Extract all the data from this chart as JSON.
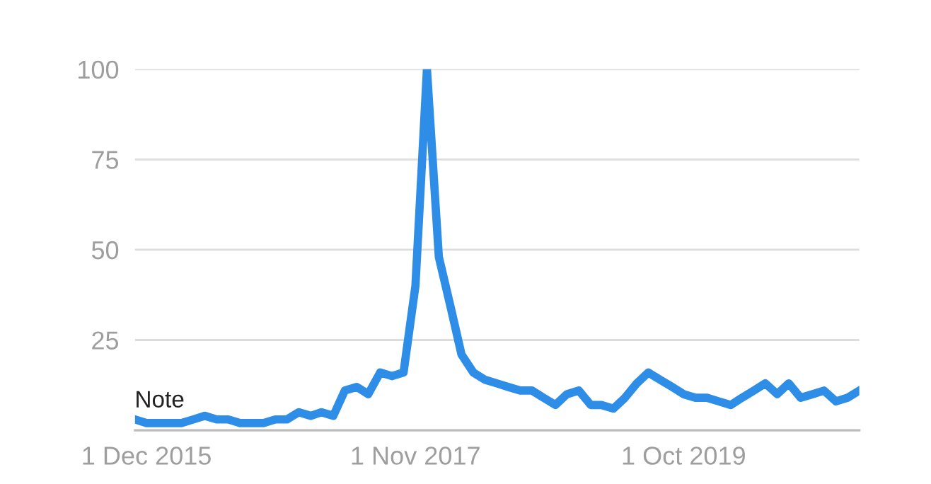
{
  "chart_data": {
    "type": "line",
    "x": [
      "2015-11",
      "2015-12",
      "2016-01",
      "2016-02",
      "2016-03",
      "2016-04",
      "2016-05",
      "2016-06",
      "2016-07",
      "2016-08",
      "2016-09",
      "2016-10",
      "2016-11",
      "2016-12",
      "2017-01",
      "2017-02",
      "2017-03",
      "2017-04",
      "2017-05",
      "2017-06",
      "2017-07",
      "2017-08",
      "2017-09",
      "2017-10",
      "2017-11",
      "2017-12",
      "2018-01",
      "2018-02",
      "2018-03",
      "2018-04",
      "2018-05",
      "2018-06",
      "2018-07",
      "2018-08",
      "2018-09",
      "2018-10",
      "2018-11",
      "2018-12",
      "2019-01",
      "2019-02",
      "2019-03",
      "2019-04",
      "2019-05",
      "2019-06",
      "2019-07",
      "2019-08",
      "2019-09",
      "2019-10",
      "2019-11",
      "2019-12",
      "2020-01",
      "2020-02",
      "2020-03",
      "2020-04",
      "2020-05",
      "2020-06",
      "2020-07",
      "2020-08",
      "2020-09",
      "2020-10",
      "2020-11",
      "2020-12",
      "2021-01"
    ],
    "series": [
      {
        "color": "#2e8de6",
        "values": [
          3,
          2,
          2,
          2,
          2,
          3,
          4,
          3,
          3,
          2,
          2,
          2,
          3,
          3,
          5,
          4,
          5,
          4,
          11,
          12,
          10,
          16,
          15,
          16,
          40,
          100,
          48,
          34,
          21,
          16,
          14,
          13,
          12,
          11,
          11,
          9,
          7,
          10,
          11,
          7,
          7,
          6,
          9,
          13,
          16,
          14,
          12,
          10,
          9,
          9,
          8,
          7,
          9,
          11,
          13,
          10,
          13,
          9,
          10,
          11,
          8,
          9,
          11
        ]
      }
    ],
    "xlim": [
      "2015-11",
      "2021-01"
    ],
    "xticks": [
      {
        "value": "2015-12",
        "label": "1 Dec 2015"
      },
      {
        "value": "2017-11",
        "label": "1 Nov 2017"
      },
      {
        "value": "2019-10",
        "label": "1 Oct 2019"
      }
    ],
    "ylim": [
      0,
      100
    ],
    "yticks": [
      {
        "value": 0,
        "label": null
      },
      25,
      50,
      75,
      100
    ],
    "grid": "y",
    "marker": "none",
    "line_style": "solid",
    "annotations": [
      {
        "text": "Note",
        "x": "2015-12",
        "y": 2
      }
    ]
  }
}
